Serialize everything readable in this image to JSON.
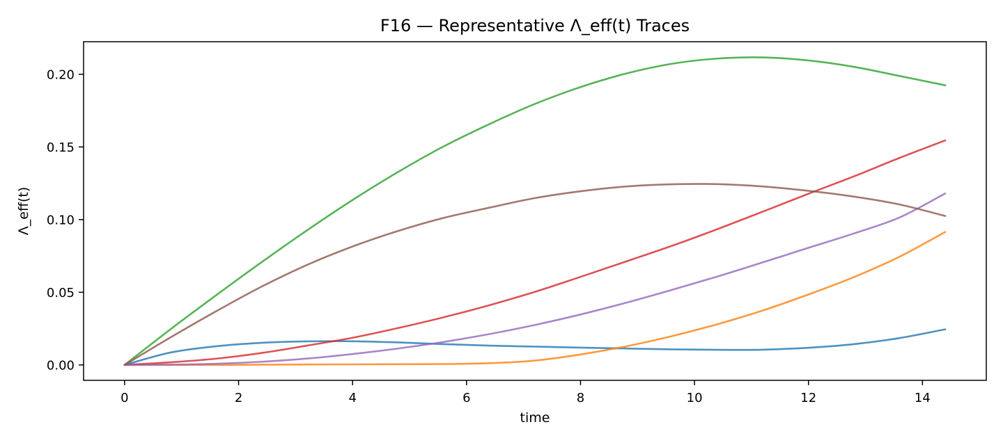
{
  "chart_data": {
    "type": "line",
    "title": "F16 — Representative Λ_eff(t) Traces",
    "xlabel": "time",
    "ylabel": "Λ_eff(t)",
    "xlim": [
      -0.72,
      15.12
    ],
    "ylim": [
      -0.0106,
      0.2224
    ],
    "xticks": [
      0,
      2,
      4,
      6,
      8,
      10,
      12,
      14
    ],
    "xtick_labels": [
      "0",
      "2",
      "4",
      "6",
      "8",
      "10",
      "12",
      "14"
    ],
    "yticks": [
      0.0,
      0.05,
      0.1,
      0.15,
      0.2
    ],
    "ytick_labels": [
      "0.00",
      "0.05",
      "0.10",
      "0.15",
      "0.20"
    ],
    "grid": false,
    "x": [
      0,
      0.8,
      1.6,
      2.4,
      3.2,
      4.0,
      4.8,
      5.6,
      6.4,
      7.2,
      8.0,
      8.8,
      9.6,
      10.4,
      11.2,
      12.0,
      12.8,
      13.6,
      14.4
    ],
    "series": [
      {
        "color": "#1f77b4",
        "values": [
          0.0,
          0.0085,
          0.0128,
          0.0152,
          0.0162,
          0.0163,
          0.0155,
          0.0143,
          0.0133,
          0.0126,
          0.0119,
          0.0113,
          0.0107,
          0.0104,
          0.0105,
          0.0118,
          0.0143,
          0.0185,
          0.0245
        ]
      },
      {
        "color": "#ff7f0e",
        "values": [
          0.0,
          0.0,
          0.0,
          0.0002,
          0.0003,
          0.0004,
          0.0005,
          0.0006,
          0.0012,
          0.003,
          0.0072,
          0.0128,
          0.0198,
          0.028,
          0.0375,
          0.0485,
          0.0605,
          0.0745,
          0.0915
        ]
      },
      {
        "color": "#2ca02c",
        "values": [
          0.0,
          0.0244,
          0.0478,
          0.0706,
          0.0926,
          0.1135,
          0.1328,
          0.1504,
          0.1657,
          0.1796,
          0.1912,
          0.2005,
          0.2072,
          0.2108,
          0.2116,
          0.2095,
          0.2051,
          0.1988,
          0.1924
        ]
      },
      {
        "color": "#d62728",
        "values": [
          0.0,
          0.0018,
          0.0043,
          0.0082,
          0.0133,
          0.0187,
          0.0254,
          0.0328,
          0.0411,
          0.0503,
          0.0606,
          0.0712,
          0.0819,
          0.0934,
          0.1055,
          0.1178,
          0.1298,
          0.1425,
          0.1545
        ]
      },
      {
        "color": "#9467bd",
        "values": [
          0.0,
          0.0002,
          0.0008,
          0.0022,
          0.0044,
          0.0075,
          0.0113,
          0.0158,
          0.0212,
          0.0275,
          0.0347,
          0.0428,
          0.0516,
          0.0608,
          0.0706,
          0.0806,
          0.0905,
          0.1015,
          0.118
        ]
      },
      {
        "color": "#8c564b",
        "values": [
          0.0,
          0.0188,
          0.0368,
          0.0538,
          0.0688,
          0.0815,
          0.0922,
          0.1012,
          0.1082,
          0.1148,
          0.1195,
          0.1228,
          0.1243,
          0.1244,
          0.1228,
          0.1198,
          0.1158,
          0.1104,
          0.1025
        ]
      }
    ]
  }
}
